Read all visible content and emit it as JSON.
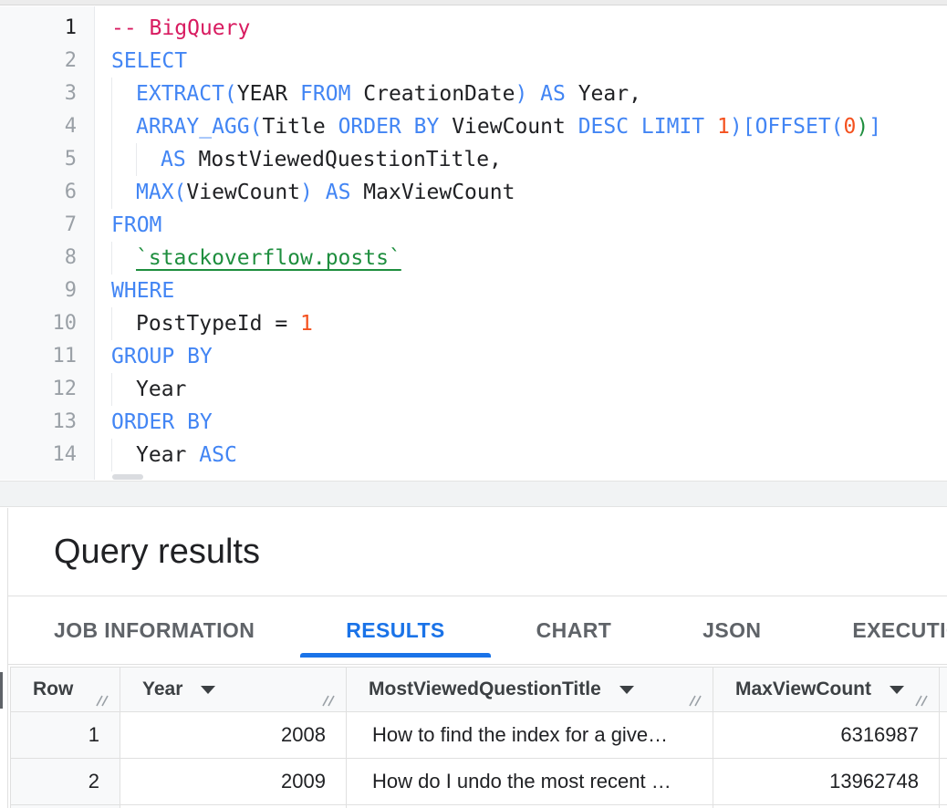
{
  "colors": {
    "keyword": "#4285f4",
    "comment": "#d81b60",
    "number": "#f4511e",
    "table_ref_green": "#1e8e3e",
    "text": "#202124",
    "active_tab_blue": "#1a73e8",
    "header_bg": "#f8f9fa",
    "border": "#e0e0e0"
  },
  "editor": {
    "lines": [
      {
        "n": "1",
        "active": true,
        "indent": 0,
        "tokens": [
          {
            "t": "-- BigQuery",
            "c": "com"
          }
        ]
      },
      {
        "n": "2",
        "indent": 0,
        "tokens": [
          {
            "t": "SELECT",
            "c": "kw"
          }
        ]
      },
      {
        "n": "3",
        "indent": 1,
        "tokens": [
          {
            "t": "EXTRACT(",
            "c": "kw"
          },
          {
            "t": "YEAR ",
            "c": "id"
          },
          {
            "t": "FROM",
            "c": "kw"
          },
          {
            "t": " CreationDate",
            "c": "id"
          },
          {
            "t": ")",
            "c": "kw"
          },
          {
            "t": " ",
            "c": "id"
          },
          {
            "t": "AS",
            "c": "kw"
          },
          {
            "t": " Year,",
            "c": "id"
          }
        ]
      },
      {
        "n": "4",
        "indent": 1,
        "tokens": [
          {
            "t": "ARRAY_AGG(",
            "c": "kw"
          },
          {
            "t": "Title ",
            "c": "id"
          },
          {
            "t": "ORDER BY",
            "c": "kw"
          },
          {
            "t": " ViewCount ",
            "c": "id"
          },
          {
            "t": "DESC LIMIT",
            "c": "kw"
          },
          {
            "t": " ",
            "c": "id"
          },
          {
            "t": "1",
            "c": "num"
          },
          {
            "t": ")[OFFSET(",
            "c": "kw"
          },
          {
            "t": "0",
            "c": "num"
          },
          {
            "t": ")",
            "c": "grn"
          },
          {
            "t": "]",
            "c": "kw"
          }
        ]
      },
      {
        "n": "5",
        "indent": 2,
        "tokens": [
          {
            "t": "AS",
            "c": "kw"
          },
          {
            "t": " MostViewedQuestionTitle,",
            "c": "id"
          }
        ]
      },
      {
        "n": "6",
        "indent": 1,
        "tokens": [
          {
            "t": "MAX(",
            "c": "kw"
          },
          {
            "t": "ViewCount",
            "c": "id"
          },
          {
            "t": ")",
            "c": "kw"
          },
          {
            "t": " ",
            "c": "id"
          },
          {
            "t": "AS",
            "c": "kw"
          },
          {
            "t": " MaxViewCount",
            "c": "id"
          }
        ]
      },
      {
        "n": "7",
        "indent": 0,
        "tokens": [
          {
            "t": "FROM",
            "c": "kw"
          }
        ]
      },
      {
        "n": "8",
        "indent": 1,
        "tokens": [
          {
            "t": "`stackoverflow.posts`",
            "c": "link"
          }
        ]
      },
      {
        "n": "9",
        "indent": 0,
        "tokens": [
          {
            "t": "WHERE",
            "c": "kw"
          }
        ]
      },
      {
        "n": "10",
        "indent": 1,
        "tokens": [
          {
            "t": "PostTypeId = ",
            "c": "id"
          },
          {
            "t": "1",
            "c": "num"
          }
        ]
      },
      {
        "n": "11",
        "indent": 0,
        "tokens": [
          {
            "t": "GROUP BY",
            "c": "kw"
          }
        ]
      },
      {
        "n": "12",
        "indent": 1,
        "tokens": [
          {
            "t": "Year",
            "c": "id"
          }
        ]
      },
      {
        "n": "13",
        "indent": 0,
        "tokens": [
          {
            "t": "ORDER BY",
            "c": "kw"
          }
        ]
      },
      {
        "n": "14",
        "indent": 1,
        "tokens": [
          {
            "t": "Year ",
            "c": "id"
          },
          {
            "t": "ASC",
            "c": "kw"
          }
        ]
      }
    ]
  },
  "results": {
    "title": "Query results",
    "tabs": [
      {
        "label": "JOB INFORMATION",
        "active": false
      },
      {
        "label": "RESULTS",
        "active": true
      },
      {
        "label": "CHART",
        "active": false
      },
      {
        "label": "JSON",
        "active": false
      },
      {
        "label": "EXECUTION DETAILS",
        "active": false
      }
    ],
    "table": {
      "columns": [
        {
          "label": "Row",
          "sortable": false,
          "align": "right"
        },
        {
          "label": "Year",
          "sortable": true,
          "align": "right"
        },
        {
          "label": "MostViewedQuestionTitle",
          "sortable": true,
          "align": "left"
        },
        {
          "label": "MaxViewCount",
          "sortable": true,
          "align": "right"
        }
      ],
      "rows": [
        {
          "row": "1",
          "year": "2008",
          "title": "How to find the index for a give…",
          "max": "6316987"
        },
        {
          "row": "2",
          "year": "2009",
          "title": "How do I undo the most recent …",
          "max": "13962748"
        }
      ]
    }
  }
}
